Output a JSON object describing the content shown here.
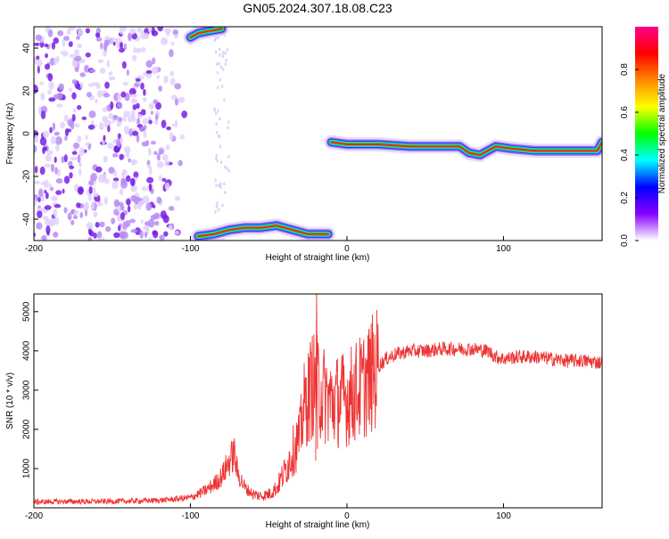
{
  "figure": {
    "title": "GN05.2024.307.18.08.C23"
  },
  "chart_data": [
    {
      "type": "heatmap",
      "xlabel": "Height of straight line (km)",
      "ylabel": "Frequency (Hz)",
      "xlim": [
        -200,
        163
      ],
      "ylim": [
        -50,
        50
      ],
      "x_ticks": [
        -200,
        -100,
        0,
        100
      ],
      "y_ticks": [
        -40,
        -20,
        0,
        20,
        40
      ],
      "colorbar": {
        "label": "Normalized spectral amplitude",
        "range": [
          0,
          1
        ],
        "ticks": [
          0.0,
          0.2,
          0.4,
          0.6,
          0.8
        ],
        "colors": [
          "#ffffff",
          "#8800ff",
          "#0000ff",
          "#00ffff",
          "#00ff00",
          "#ffff00",
          "#ff8800",
          "#ff0000",
          "#ff0088"
        ]
      },
      "features": {
        "scatter_region_x": [
          -200,
          -100
        ],
        "sparse_band_x": [
          -85,
          -75
        ],
        "upper_arc_points": [
          [
            -100,
            45
          ],
          [
            -95,
            47
          ],
          [
            -88,
            48
          ],
          [
            -80,
            49
          ]
        ],
        "lower_arc_points": [
          [
            -95,
            -48
          ],
          [
            -85,
            -47
          ],
          [
            -75,
            -45
          ],
          [
            -65,
            -44
          ],
          [
            -55,
            -44
          ],
          [
            -45,
            -43
          ],
          [
            -35,
            -45
          ],
          [
            -25,
            -47
          ],
          [
            -12,
            -47
          ]
        ],
        "main_track_points": [
          [
            -10,
            -4
          ],
          [
            0,
            -5
          ],
          [
            20,
            -5
          ],
          [
            40,
            -6
          ],
          [
            60,
            -6
          ],
          [
            72,
            -6
          ],
          [
            78,
            -9
          ],
          [
            85,
            -10
          ],
          [
            95,
            -6
          ],
          [
            105,
            -7
          ],
          [
            120,
            -8
          ],
          [
            150,
            -8
          ],
          [
            160,
            -8
          ],
          [
            163,
            -4
          ]
        ]
      }
    },
    {
      "type": "line",
      "xlabel": "Height of straight line (km)",
      "ylabel": "SNR (10 * v/v)",
      "xlim": [
        -200,
        163
      ],
      "ylim": [
        0,
        5450
      ],
      "x_ticks": [
        -200,
        -100,
        0,
        100
      ],
      "y_ticks": [
        1000,
        2000,
        3000,
        4000,
        5000
      ],
      "color": "#ee3333",
      "series": [
        {
          "x": [
            -200,
            -180,
            -160,
            -140,
            -120,
            -110,
            -100,
            -95,
            -90,
            -85,
            -80,
            -75,
            -72,
            -70,
            -65,
            -60,
            -55,
            -50,
            -45,
            -40,
            -35,
            -30,
            -28,
            -25,
            -22,
            -20,
            -18,
            -15,
            -10,
            -5,
            0,
            5,
            10,
            15,
            20,
            25,
            30,
            35,
            40,
            50,
            60,
            70,
            80,
            90,
            95,
            100,
            110,
            120,
            130,
            140,
            150,
            163
          ],
          "y": [
            150,
            160,
            160,
            170,
            190,
            220,
            260,
            350,
            450,
            600,
            800,
            1200,
            1400,
            900,
            500,
            350,
            300,
            350,
            500,
            900,
            1400,
            1800,
            2500,
            2800,
            3200,
            3000,
            3100,
            2900,
            2700,
            2750,
            2800,
            2950,
            3100,
            3350,
            3600,
            3800,
            3900,
            3950,
            4000,
            4000,
            4050,
            4050,
            4050,
            4000,
            3850,
            3800,
            3850,
            3850,
            3800,
            3750,
            3750,
            3700
          ]
        }
      ]
    }
  ]
}
